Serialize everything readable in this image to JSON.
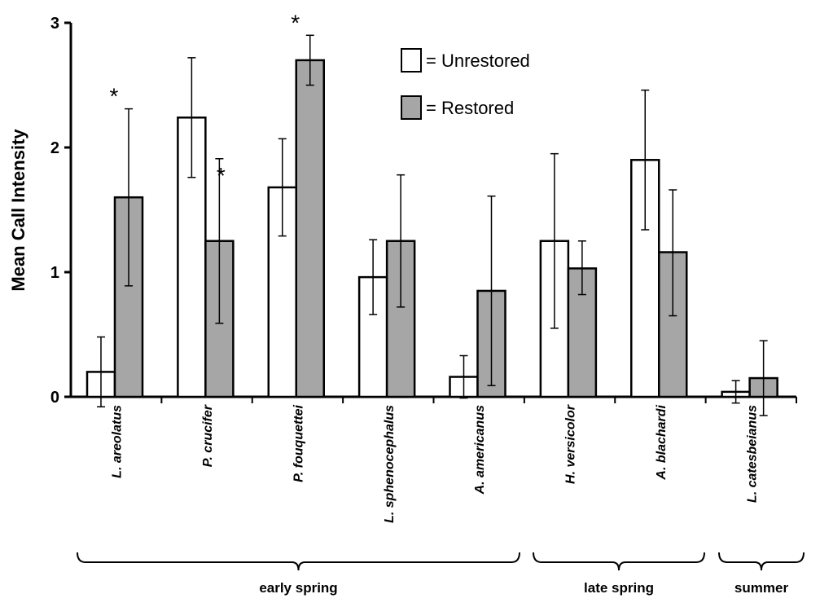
{
  "chart_data": {
    "type": "bar",
    "ylabel": "Mean Call Intensity",
    "ylim": [
      0,
      3
    ],
    "yticks": [
      "0",
      "1",
      "2",
      "3"
    ],
    "categories": [
      "L. areolatus",
      "P. crucifer",
      "P. fouquettei",
      "L. sphenocephalus",
      "A. americanus",
      "H. versicolor",
      "A. blachardi",
      "L. catesbeianus"
    ],
    "series": [
      {
        "name": "Unrestored",
        "color": "#ffffff",
        "values": [
          0.2,
          2.24,
          1.68,
          0.96,
          0.16,
          1.25,
          1.9,
          0.04
        ],
        "err_low": [
          -0.08,
          1.76,
          1.29,
          0.66,
          -0.01,
          0.55,
          1.34,
          -0.05
        ],
        "err_high": [
          0.48,
          2.72,
          2.07,
          1.26,
          0.33,
          1.95,
          2.46,
          0.13
        ],
        "sig": [
          "",
          "",
          "",
          "",
          "",
          "",
          "",
          ""
        ]
      },
      {
        "name": "Restored",
        "color": "#a6a6a6",
        "values": [
          1.6,
          1.25,
          2.7,
          1.25,
          0.85,
          1.03,
          1.16,
          0.15
        ],
        "err_low": [
          0.89,
          0.59,
          2.5,
          0.72,
          0.09,
          0.82,
          0.65,
          -0.15
        ],
        "err_high": [
          2.31,
          1.91,
          2.9,
          1.78,
          1.61,
          1.25,
          1.66,
          0.45
        ],
        "sig": [
          "*",
          "*",
          "*",
          "",
          "",
          "",
          "",
          ""
        ]
      }
    ],
    "legend": {
      "placement": "top-center",
      "entries": [
        "= Unrestored",
        "= Restored"
      ]
    },
    "groups": [
      {
        "label": "early spring",
        "first": 0,
        "last": 4
      },
      {
        "label": "late spring",
        "first": 5,
        "last": 6
      },
      {
        "label": "summer",
        "first": 7,
        "last": 7
      }
    ],
    "grid": false
  }
}
